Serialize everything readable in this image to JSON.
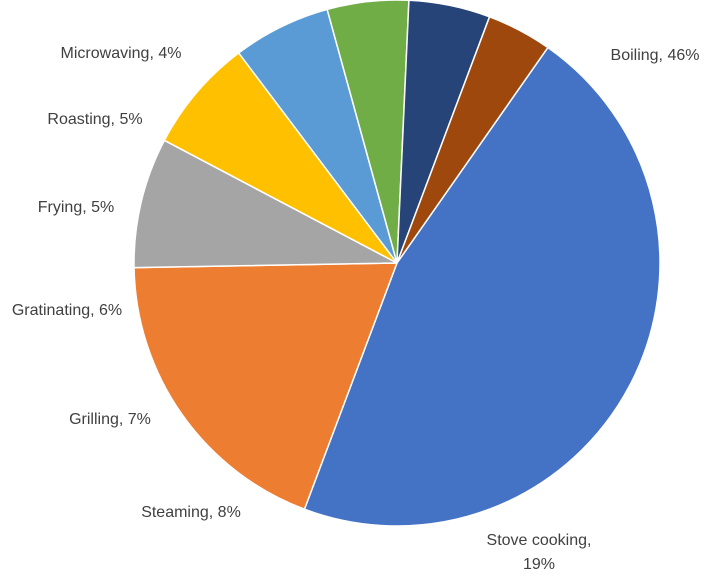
{
  "chart_data": {
    "type": "pie",
    "title": "",
    "slices": [
      {
        "label": "Boiling",
        "value": 46,
        "value_label": "46%",
        "color": "#4472C4"
      },
      {
        "label": "Stove cooking",
        "value": 19,
        "value_label": "19%",
        "color": "#ED7D31"
      },
      {
        "label": "Steaming",
        "value": 8,
        "value_label": "8%",
        "color": "#A5A5A5"
      },
      {
        "label": "Grilling",
        "value": 7,
        "value_label": "7%",
        "color": "#FFC000"
      },
      {
        "label": "Gratinating",
        "value": 6,
        "value_label": "6%",
        "color": "#5B9BD5"
      },
      {
        "label": "Frying",
        "value": 5,
        "value_label": "5%",
        "color": "#70AD47"
      },
      {
        "label": "Roasting",
        "value": 5,
        "value_label": "5%",
        "color": "#264478"
      },
      {
        "label": "Microwaving",
        "value": 4,
        "value_label": "4%",
        "color": "#9E480E"
      }
    ],
    "legend": "none",
    "label_format": "category, percent"
  }
}
